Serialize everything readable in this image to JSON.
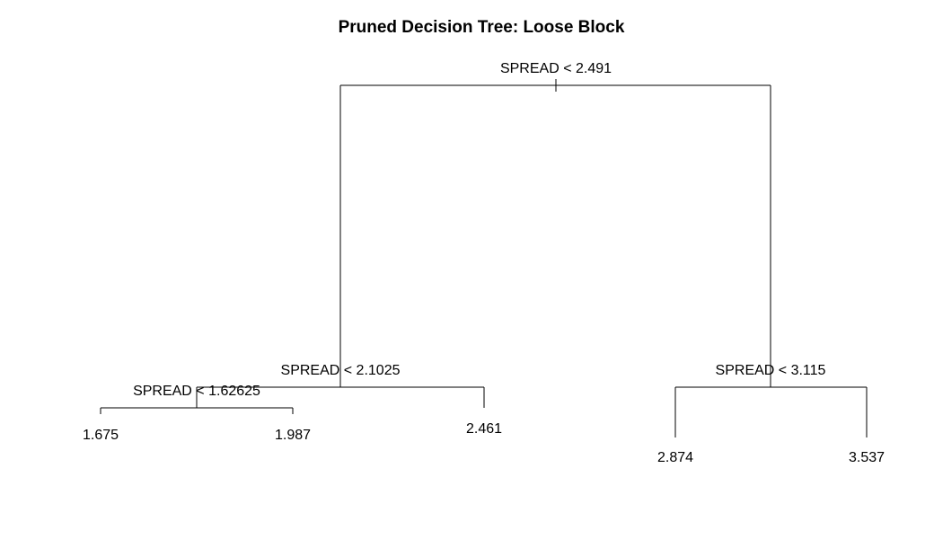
{
  "title": "Pruned Decision Tree: Loose Block",
  "tree": {
    "root": {
      "split": "SPREAD < 2.491",
      "left": {
        "split": "SPREAD < 2.1025",
        "left": {
          "split": "SPREAD < 1.62625",
          "left": {
            "leaf": "1.675"
          },
          "right": {
            "leaf": "1.987"
          }
        },
        "right": {
          "leaf": "2.461"
        }
      },
      "right": {
        "split": "SPREAD < 3.115",
        "left": {
          "leaf": "2.874"
        },
        "right": {
          "leaf": "3.537"
        }
      }
    }
  }
}
